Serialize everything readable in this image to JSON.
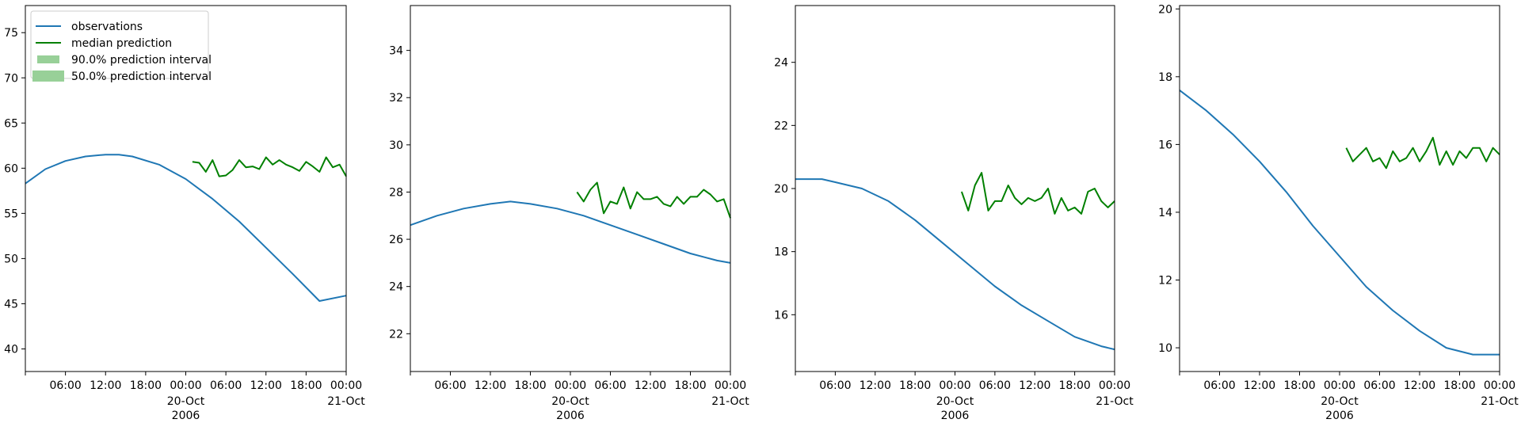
{
  "figure": {
    "background": "#ffffff",
    "date_label": "20-Oct\n2006"
  },
  "colors": {
    "observations": "#1f77b4",
    "median": "#008000",
    "interval": "#98d098",
    "legend_border": "#cccccc"
  },
  "legend": {
    "placement": "upper-left of first panel",
    "entries": [
      {
        "label": "observations",
        "kind": "line",
        "color": "#1f77b4"
      },
      {
        "label": "median prediction",
        "kind": "line",
        "color": "#008000"
      },
      {
        "label": "90.0% prediction interval",
        "kind": "patch",
        "color": "#98d098"
      },
      {
        "label": "50.0% prediction interval",
        "kind": "patch",
        "color": "#98d098"
      }
    ]
  },
  "x_axis": {
    "tick_hours": [
      6,
      12,
      18,
      24,
      30,
      36,
      42,
      48
    ],
    "tick_labels": [
      "06:00",
      "12:00",
      "18:00",
      "00:00",
      "06:00",
      "12:00",
      "18:00",
      "00:00"
    ],
    "secondary_labels": {
      "24": [
        "20-Oct",
        "2006"
      ],
      "48": [
        "21-Oct"
      ]
    },
    "range_hours": [
      0,
      48
    ]
  },
  "chart_data": [
    {
      "type": "line",
      "ylim": [
        37.5,
        78.0
      ],
      "yticks": [
        40,
        45,
        50,
        55,
        60,
        65,
        70,
        75
      ],
      "series": [
        {
          "name": "observations",
          "x": [
            0,
            3,
            6,
            9,
            12,
            14,
            16,
            20,
            24,
            28,
            32,
            36,
            40,
            44,
            48
          ],
          "y": [
            58.3,
            59.9,
            60.8,
            61.3,
            61.5,
            61.5,
            61.3,
            60.4,
            58.8,
            56.6,
            54.1,
            51.2,
            48.3,
            45.3,
            45.9
          ]
        },
        {
          "name": "median prediction",
          "x": [
            25,
            26,
            27,
            28,
            29,
            30,
            31,
            32,
            33,
            34,
            35,
            36,
            37,
            38,
            39,
            40,
            41,
            42,
            43,
            44,
            45,
            46,
            47,
            48
          ],
          "y": [
            60.7,
            60.6,
            59.6,
            60.9,
            59.1,
            59.2,
            59.8,
            60.9,
            60.1,
            60.2,
            59.9,
            61.2,
            60.4,
            60.9,
            60.4,
            60.1,
            59.7,
            60.7,
            60.2,
            59.6,
            61.2,
            60.1,
            60.4,
            59.1
          ]
        }
      ]
    },
    {
      "type": "line",
      "ylim": [
        20.4,
        35.9
      ],
      "yticks": [
        22,
        24,
        26,
        28,
        30,
        32,
        34
      ],
      "series": [
        {
          "name": "observations",
          "x": [
            0,
            4,
            8,
            12,
            15,
            18,
            22,
            26,
            30,
            34,
            38,
            42,
            46,
            48
          ],
          "y": [
            26.6,
            27.0,
            27.3,
            27.5,
            27.6,
            27.5,
            27.3,
            27.0,
            26.6,
            26.2,
            25.8,
            25.4,
            25.1,
            25.0
          ]
        },
        {
          "name": "median prediction",
          "x": [
            25,
            26,
            27,
            28,
            29,
            30,
            31,
            32,
            33,
            34,
            35,
            36,
            37,
            38,
            39,
            40,
            41,
            42,
            43,
            44,
            45,
            46,
            47,
            48
          ],
          "y": [
            28.0,
            27.6,
            28.1,
            28.4,
            27.1,
            27.6,
            27.5,
            28.2,
            27.3,
            28.0,
            27.7,
            27.7,
            27.8,
            27.5,
            27.4,
            27.8,
            27.5,
            27.8,
            27.8,
            28.1,
            27.9,
            27.6,
            27.7,
            26.9
          ]
        }
      ]
    },
    {
      "type": "line",
      "ylim": [
        14.2,
        25.8
      ],
      "yticks": [
        16,
        18,
        20,
        22,
        24
      ],
      "series": [
        {
          "name": "observations",
          "x": [
            0,
            2,
            4,
            6,
            10,
            14,
            18,
            22,
            26,
            30,
            34,
            38,
            42,
            46,
            48
          ],
          "y": [
            20.3,
            20.3,
            20.3,
            20.2,
            20.0,
            19.6,
            19.0,
            18.3,
            17.6,
            16.9,
            16.3,
            15.8,
            15.3,
            15.0,
            14.9
          ]
        },
        {
          "name": "median prediction",
          "x": [
            25,
            26,
            27,
            28,
            29,
            30,
            31,
            32,
            33,
            34,
            35,
            36,
            37,
            38,
            39,
            40,
            41,
            42,
            43,
            44,
            45,
            46,
            47,
            48
          ],
          "y": [
            19.9,
            19.3,
            20.1,
            20.5,
            19.3,
            19.6,
            19.6,
            20.1,
            19.7,
            19.5,
            19.7,
            19.6,
            19.7,
            20.0,
            19.2,
            19.7,
            19.3,
            19.4,
            19.2,
            19.9,
            20.0,
            19.6,
            19.4,
            19.6
          ]
        }
      ]
    },
    {
      "type": "line",
      "ylim": [
        9.3,
        20.1
      ],
      "yticks": [
        10,
        12,
        14,
        16,
        18,
        20
      ],
      "series": [
        {
          "name": "observations",
          "x": [
            0,
            4,
            8,
            12,
            16,
            20,
            24,
            28,
            32,
            36,
            40,
            44,
            48
          ],
          "y": [
            17.6,
            17.0,
            16.3,
            15.5,
            14.6,
            13.6,
            12.7,
            11.8,
            11.1,
            10.5,
            10.0,
            9.8,
            9.8
          ]
        },
        {
          "name": "median prediction",
          "x": [
            25,
            26,
            27,
            28,
            29,
            30,
            31,
            32,
            33,
            34,
            35,
            36,
            37,
            38,
            39,
            40,
            41,
            42,
            43,
            44,
            45,
            46,
            47,
            48
          ],
          "y": [
            15.9,
            15.5,
            15.7,
            15.9,
            15.5,
            15.6,
            15.3,
            15.8,
            15.5,
            15.6,
            15.9,
            15.5,
            15.8,
            16.2,
            15.4,
            15.8,
            15.4,
            15.8,
            15.6,
            15.9,
            15.9,
            15.5,
            15.9,
            15.7
          ]
        }
      ]
    }
  ]
}
